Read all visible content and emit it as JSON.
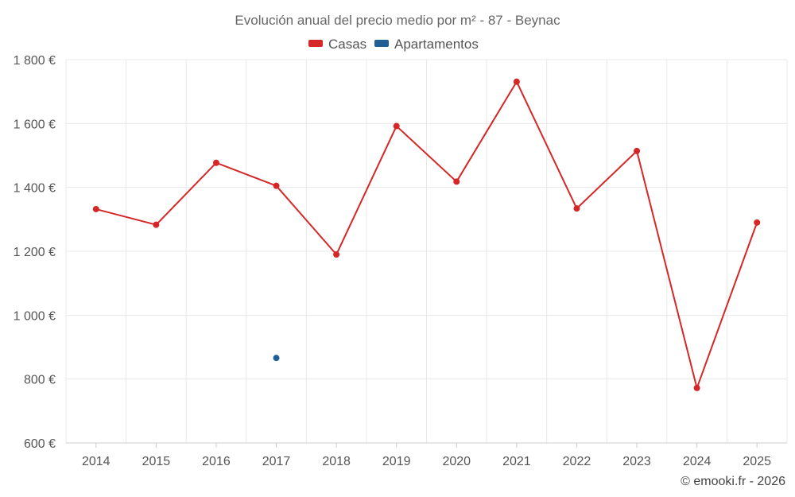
{
  "chart_data": {
    "type": "line",
    "title": "Evolución anual del precio medio por m² - 87 - Beynac",
    "categories": [
      "2014",
      "2015",
      "2016",
      "2017",
      "2018",
      "2019",
      "2020",
      "2021",
      "2022",
      "2023",
      "2024",
      "2025"
    ],
    "series": [
      {
        "name": "Casas",
        "color": "#d62728",
        "values": [
          1332,
          1283,
          1477,
          1405,
          1190,
          1592,
          1418,
          1731,
          1334,
          1514,
          772,
          1290
        ]
      },
      {
        "name": "Apartamentos",
        "color": "#1f5f96",
        "values": [
          null,
          null,
          null,
          866,
          null,
          null,
          null,
          null,
          null,
          null,
          null,
          null
        ]
      }
    ],
    "ylim": [
      600,
      1800
    ],
    "yticks": [
      600,
      800,
      1000,
      1200,
      1400,
      1600,
      1800
    ],
    "ytick_labels": [
      "600 €",
      "800 €",
      "1 000 €",
      "1 200 €",
      "1 400 €",
      "1 600 €",
      "1 800 €"
    ],
    "xlabel": "",
    "ylabel": "",
    "grid": true,
    "legend_position": "top-center"
  },
  "credit": "© emooki.fr - 2026"
}
